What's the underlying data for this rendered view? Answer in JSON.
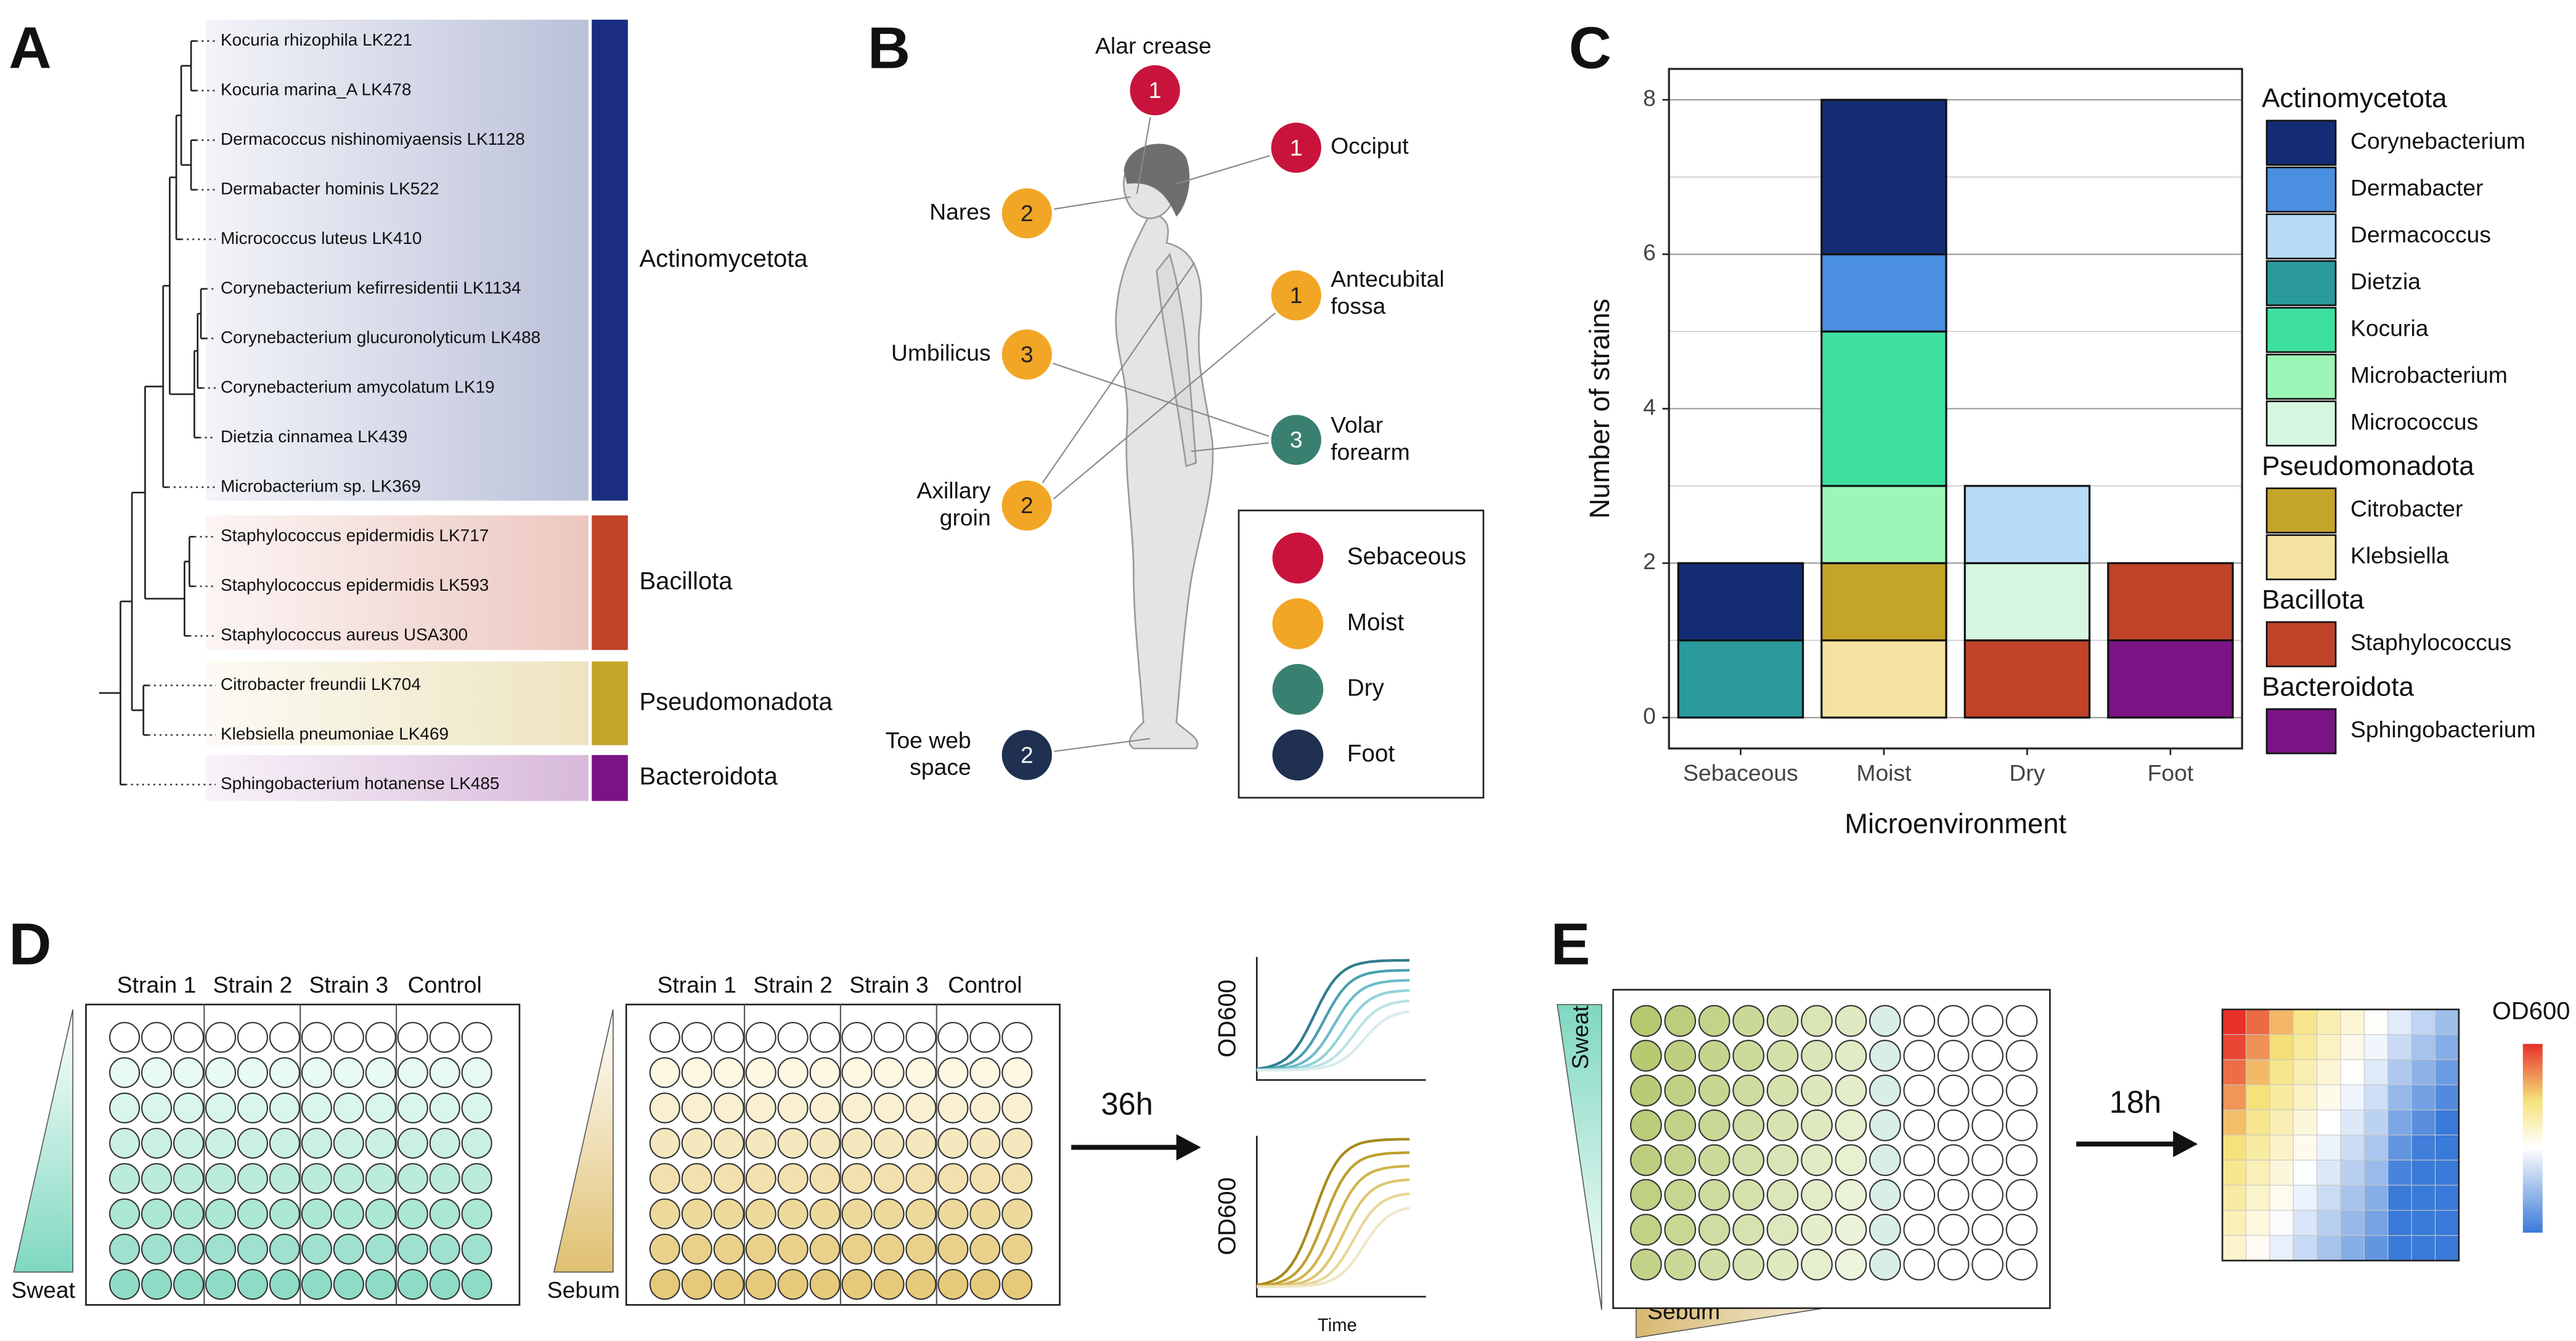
{
  "panel_labels": [
    "A",
    "B",
    "C",
    "D",
    "E"
  ],
  "tree": {
    "leaves": [
      "Kocuria rhizophila LK221",
      "Kocuria marina_A LK478",
      "Dermacoccus nishinomiyaensis LK1128",
      "Dermabacter hominis LK522",
      "Micrococcus luteus LK410",
      "Corynebacterium kefirresidentii LK1134",
      "Corynebacterium glucuronolyticum LK488",
      "Corynebacterium amycolatum LK19",
      "Dietzia cinnamea LK439",
      "Microbacterium sp. LK369",
      "Staphylococcus epidermidis LK717",
      "Staphylococcus epidermidis LK593",
      "Staphylococcus aureus USA300",
      "Citrobacter freundii LK704",
      "Klebsiella pneumoniae LK469",
      "Sphingobacterium hotanense LK485"
    ],
    "phyla": [
      {
        "name": "Actinomycetota",
        "color": "#1a2d80"
      },
      {
        "name": "Bacillota",
        "color": "#c0432a"
      },
      {
        "name": "Pseudomonadota",
        "color": "#c4a52a"
      },
      {
        "name": "Bacteroidota",
        "color": "#7a1484"
      }
    ]
  },
  "body_map": {
    "sites": [
      {
        "label": [
          "Alar crease"
        ],
        "count": 1,
        "color": "#c8143c"
      },
      {
        "label": [
          "Occiput"
        ],
        "count": 1,
        "color": "#c8143c"
      },
      {
        "label": [
          "Nares"
        ],
        "count": 2,
        "color": "#f2a625"
      },
      {
        "label": [
          "Antecubital",
          "fossa"
        ],
        "count": 1,
        "color": "#f2a625"
      },
      {
        "label": [
          "Umbilicus"
        ],
        "count": 3,
        "color": "#f2a625"
      },
      {
        "label": [
          "Volar",
          "forearm"
        ],
        "count": 3,
        "color": "#3a8070"
      },
      {
        "label": [
          "Axillary",
          "groin"
        ],
        "count": 2,
        "color": "#f2a625"
      },
      {
        "label": [
          "Toe web",
          "space"
        ],
        "count": 2,
        "color": "#1f3050"
      }
    ],
    "legend": [
      {
        "name": "Sebaceous",
        "color": "#c8143c"
      },
      {
        "name": "Moist",
        "color": "#f2a625"
      },
      {
        "name": "Dry",
        "color": "#3a8070"
      },
      {
        "name": "Foot",
        "color": "#1f3050"
      }
    ]
  },
  "chart_data": {
    "type": "bar",
    "stacked": true,
    "x_label": "Microenvironment",
    "y_label": "Number of strains",
    "categories": [
      "Sebaceous",
      "Moist",
      "Dry",
      "Foot"
    ],
    "series": [
      {
        "name": "Corynebacterium",
        "group": "Actinomycetota",
        "color": "#142c73",
        "values": [
          1,
          2,
          0,
          0
        ]
      },
      {
        "name": "Dermabacter",
        "color": "#4a8fe0",
        "values": [
          0,
          1,
          0,
          0
        ]
      },
      {
        "name": "Dermacoccus",
        "color": "#b7daf7",
        "values": [
          0,
          0,
          1,
          0
        ]
      },
      {
        "name": "Dietzia",
        "color": "#2a9a9c",
        "values": [
          1,
          0,
          0,
          0
        ]
      },
      {
        "name": "Kocuria",
        "color": "#3ee0a0",
        "values": [
          0,
          2,
          0,
          0
        ]
      },
      {
        "name": "Microbacterium",
        "color": "#9ef5b8",
        "values": [
          0,
          1,
          0,
          0
        ]
      },
      {
        "name": "Micrococcus",
        "color": "#d6f7e0",
        "values": [
          0,
          0,
          1,
          0
        ]
      },
      {
        "name": "Citrobacter",
        "group": "Pseudomonadota",
        "color": "#c4a52a",
        "values": [
          0,
          1,
          0,
          0
        ]
      },
      {
        "name": "Klebsiella",
        "color": "#f3e2a0",
        "values": [
          0,
          1,
          0,
          0
        ]
      },
      {
        "name": "Staphylococcus",
        "group": "Bacillota",
        "color": "#c0432a",
        "values": [
          0,
          0,
          1,
          1
        ]
      },
      {
        "name": "Sphingobacterium",
        "group": "Bacteroidota",
        "color": "#7a1484",
        "values": [
          0,
          0,
          0,
          1
        ]
      }
    ],
    "ylim": [
      -0.4,
      8.4
    ],
    "yticks": [
      0,
      2,
      4,
      6,
      8
    ],
    "minor_grid": [
      1,
      3,
      5,
      7
    ],
    "grid": true
  },
  "growth_assay": {
    "strains": [
      "Strain 1",
      "Strain 2",
      "Strain 3",
      "Control"
    ],
    "sweat": "Sweat",
    "sebum": "Sebum",
    "duration": "36h",
    "y_label": "OD600",
    "x_label": "Time"
  },
  "checkerboard": {
    "sweat": "Sweat",
    "sebum": "Sebum",
    "duration": "18h",
    "colorbar_label": "OD600"
  }
}
